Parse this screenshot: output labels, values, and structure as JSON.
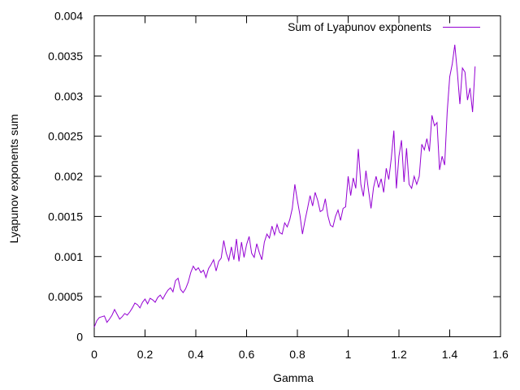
{
  "chart_data": {
    "type": "line",
    "title": "",
    "xlabel": "Gamma",
    "ylabel": "Lyapunov exponents sum",
    "xlim": [
      0,
      1.6
    ],
    "ylim": [
      0,
      0.004
    ],
    "xticks": [
      0,
      0.2,
      0.4,
      0.6,
      0.8,
      1,
      1.2,
      1.4,
      1.6
    ],
    "xtick_labels": [
      "0",
      "0.2",
      "0.4",
      "0.6",
      "0.8",
      "1",
      "1.2",
      "1.4",
      "1.6"
    ],
    "yticks": [
      0,
      0.0005,
      0.001,
      0.0015,
      0.002,
      0.0025,
      0.003,
      0.0035,
      0.004
    ],
    "ytick_labels": [
      "0",
      "0.0005",
      "0.001",
      "0.0015",
      "0.002",
      "0.0025",
      "0.003",
      "0.0035",
      "0.004"
    ],
    "grid": false,
    "legend_position": "top-right",
    "series": [
      {
        "name": "Sum of Lyapunov exponents",
        "color": "#9400d3",
        "points": [
          [
            0.0,
            0.00012
          ],
          [
            0.01,
            0.0002
          ],
          [
            0.02,
            0.00024
          ],
          [
            0.03,
            0.00025
          ],
          [
            0.04,
            0.00026
          ],
          [
            0.05,
            0.00018
          ],
          [
            0.06,
            0.00022
          ],
          [
            0.07,
            0.00027
          ],
          [
            0.08,
            0.00034
          ],
          [
            0.09,
            0.00028
          ],
          [
            0.1,
            0.00022
          ],
          [
            0.11,
            0.00025
          ],
          [
            0.12,
            0.00029
          ],
          [
            0.13,
            0.00027
          ],
          [
            0.14,
            0.00031
          ],
          [
            0.15,
            0.00036
          ],
          [
            0.16,
            0.00042
          ],
          [
            0.17,
            0.0004
          ],
          [
            0.18,
            0.00036
          ],
          [
            0.19,
            0.00043
          ],
          [
            0.2,
            0.00047
          ],
          [
            0.21,
            0.00041
          ],
          [
            0.22,
            0.00048
          ],
          [
            0.23,
            0.00046
          ],
          [
            0.24,
            0.00043
          ],
          [
            0.25,
            0.00049
          ],
          [
            0.26,
            0.00052
          ],
          [
            0.27,
            0.00047
          ],
          [
            0.28,
            0.00053
          ],
          [
            0.29,
            0.00058
          ],
          [
            0.3,
            0.00061
          ],
          [
            0.31,
            0.00056
          ],
          [
            0.32,
            0.0007
          ],
          [
            0.33,
            0.00073
          ],
          [
            0.34,
            0.00059
          ],
          [
            0.35,
            0.00055
          ],
          [
            0.36,
            0.0006
          ],
          [
            0.37,
            0.00068
          ],
          [
            0.38,
            0.0008
          ],
          [
            0.39,
            0.00088
          ],
          [
            0.4,
            0.00083
          ],
          [
            0.41,
            0.00086
          ],
          [
            0.42,
            0.0008
          ],
          [
            0.43,
            0.00083
          ],
          [
            0.44,
            0.00074
          ],
          [
            0.45,
            0.00085
          ],
          [
            0.46,
            0.0009
          ],
          [
            0.47,
            0.00096
          ],
          [
            0.48,
            0.00082
          ],
          [
            0.49,
            0.00094
          ],
          [
            0.5,
            0.00098
          ],
          [
            0.51,
            0.0012
          ],
          [
            0.52,
            0.00104
          ],
          [
            0.53,
            0.00095
          ],
          [
            0.54,
            0.00112
          ],
          [
            0.55,
            0.00096
          ],
          [
            0.56,
            0.00122
          ],
          [
            0.57,
            0.00094
          ],
          [
            0.58,
            0.00118
          ],
          [
            0.59,
            0.00099
          ],
          [
            0.6,
            0.00115
          ],
          [
            0.61,
            0.00125
          ],
          [
            0.62,
            0.00104
          ],
          [
            0.63,
            0.00099
          ],
          [
            0.64,
            0.00116
          ],
          [
            0.65,
            0.00105
          ],
          [
            0.66,
            0.00096
          ],
          [
            0.67,
            0.00118
          ],
          [
            0.68,
            0.00128
          ],
          [
            0.69,
            0.00123
          ],
          [
            0.7,
            0.00138
          ],
          [
            0.71,
            0.00127
          ],
          [
            0.72,
            0.0014
          ],
          [
            0.73,
            0.0013
          ],
          [
            0.74,
            0.00128
          ],
          [
            0.75,
            0.00142
          ],
          [
            0.76,
            0.00137
          ],
          [
            0.77,
            0.00146
          ],
          [
            0.78,
            0.0016
          ],
          [
            0.79,
            0.0019
          ],
          [
            0.8,
            0.0017
          ],
          [
            0.81,
            0.00152
          ],
          [
            0.82,
            0.00128
          ],
          [
            0.83,
            0.00145
          ],
          [
            0.84,
            0.0016
          ],
          [
            0.85,
            0.00176
          ],
          [
            0.86,
            0.00163
          ],
          [
            0.87,
            0.0018
          ],
          [
            0.88,
            0.0017
          ],
          [
            0.89,
            0.00156
          ],
          [
            0.9,
            0.00158
          ],
          [
            0.91,
            0.00172
          ],
          [
            0.92,
            0.00151
          ],
          [
            0.93,
            0.00139
          ],
          [
            0.94,
            0.00137
          ],
          [
            0.95,
            0.0015
          ],
          [
            0.96,
            0.00158
          ],
          [
            0.97,
            0.00145
          ],
          [
            0.98,
            0.0016
          ],
          [
            0.99,
            0.00162
          ],
          [
            1.0,
            0.002
          ],
          [
            1.01,
            0.00176
          ],
          [
            1.02,
            0.00198
          ],
          [
            1.03,
            0.00185
          ],
          [
            1.04,
            0.00234
          ],
          [
            1.05,
            0.0019
          ],
          [
            1.06,
            0.00175
          ],
          [
            1.07,
            0.00207
          ],
          [
            1.08,
            0.00183
          ],
          [
            1.09,
            0.0016
          ],
          [
            1.1,
            0.00186
          ],
          [
            1.11,
            0.002
          ],
          [
            1.12,
            0.00186
          ],
          [
            1.13,
            0.00197
          ],
          [
            1.14,
            0.0018
          ],
          [
            1.15,
            0.0021
          ],
          [
            1.16,
            0.00196
          ],
          [
            1.17,
            0.00223
          ],
          [
            1.18,
            0.00257
          ],
          [
            1.19,
            0.00185
          ],
          [
            1.2,
            0.00225
          ],
          [
            1.21,
            0.00245
          ],
          [
            1.22,
            0.00193
          ],
          [
            1.23,
            0.00235
          ],
          [
            1.24,
            0.0019
          ],
          [
            1.25,
            0.00185
          ],
          [
            1.26,
            0.002
          ],
          [
            1.27,
            0.0019
          ],
          [
            1.28,
            0.002
          ],
          [
            1.29,
            0.0024
          ],
          [
            1.3,
            0.00233
          ],
          [
            1.31,
            0.00247
          ],
          [
            1.32,
            0.00231
          ],
          [
            1.33,
            0.00276
          ],
          [
            1.34,
            0.00263
          ],
          [
            1.35,
            0.00267
          ],
          [
            1.36,
            0.00208
          ],
          [
            1.37,
            0.00225
          ],
          [
            1.38,
            0.00214
          ],
          [
            1.39,
            0.0028
          ],
          [
            1.4,
            0.00324
          ],
          [
            1.41,
            0.0034
          ],
          [
            1.42,
            0.00364
          ],
          [
            1.43,
            0.0033
          ],
          [
            1.44,
            0.0029
          ],
          [
            1.45,
            0.00335
          ],
          [
            1.46,
            0.0033
          ],
          [
            1.47,
            0.00295
          ],
          [
            1.48,
            0.0031
          ],
          [
            1.49,
            0.0028
          ],
          [
            1.5,
            0.00337
          ]
        ]
      }
    ]
  }
}
